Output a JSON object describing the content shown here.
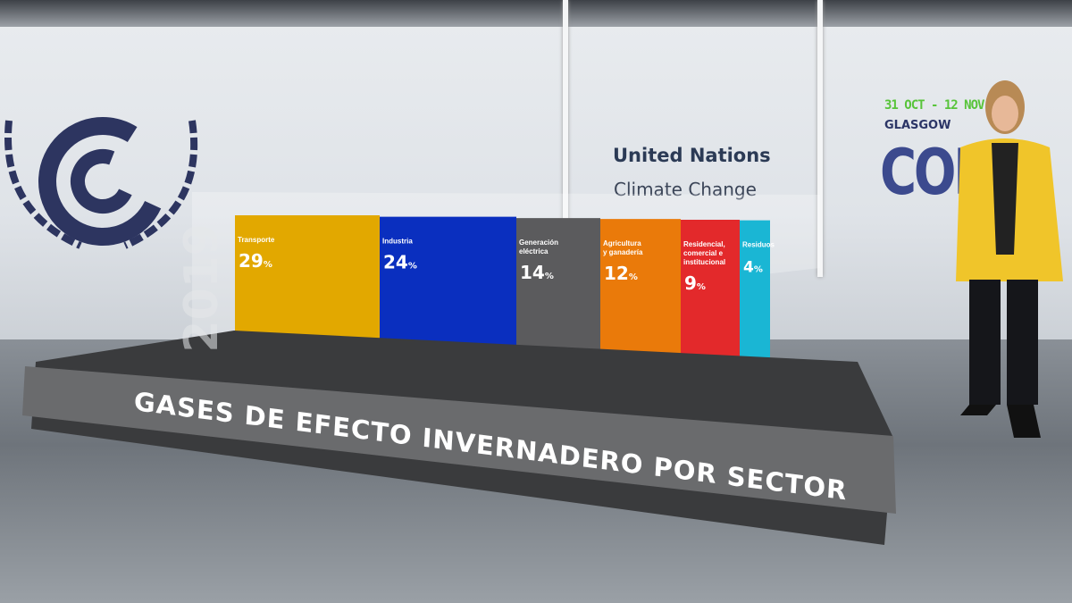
{
  "scene": {
    "organization": "United Nations",
    "organization_sub": "Climate Change",
    "event_dates": "31 OCT - 12 NOV 2021",
    "event_city": "GLASGOW",
    "event_name": "COP26",
    "event_name_visible": "COP",
    "year": "2019"
  },
  "chart_data": {
    "type": "bar",
    "title": "GASES DE EFECTO INVERNADERO POR SECTOR",
    "unit": "%",
    "categories": [
      "Transporte",
      "Industria",
      "Generación eléctrica",
      "Agricultura y ganadería",
      "Residencial, comercial e institucional",
      "Residuos"
    ],
    "label_lines": [
      [
        "Transporte"
      ],
      [
        "Industria"
      ],
      [
        "Generación",
        "eléctrica"
      ],
      [
        "Agricultura",
        "y ganadería"
      ],
      [
        "Residencial,",
        "comercial e",
        "institucional"
      ],
      [
        "Residuos"
      ]
    ],
    "values": [
      29,
      24,
      14,
      12,
      9,
      4
    ],
    "colors": [
      "#e2a800",
      "#0a2fbf",
      "#5b5b5d",
      "#ea7a0a",
      "#e3292b",
      "#1ab6d4"
    ]
  }
}
